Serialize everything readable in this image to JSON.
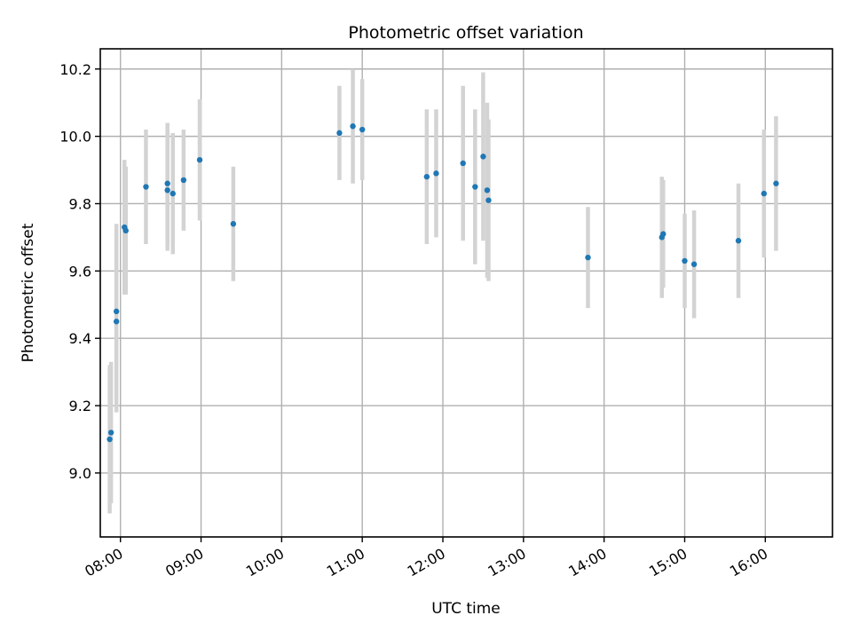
{
  "chart_data": {
    "type": "scatter",
    "title": "Photometric offset variation",
    "xlabel": "UTC time",
    "ylabel": "Photometric offset",
    "x_ticks": [
      "08:00",
      "09:00",
      "10:00",
      "11:00",
      "12:00",
      "13:00",
      "14:00",
      "15:00",
      "16:00"
    ],
    "y_ticks": [
      "9.0",
      "9.2",
      "9.4",
      "9.6",
      "9.8",
      "10.0",
      "10.2"
    ],
    "xlim": [
      "07:45",
      "16:50"
    ],
    "ylim": [
      8.81,
      10.26
    ],
    "grid": true,
    "marker_color": "#1f77b4",
    "errorbar_color": "#d3d3d3",
    "points": [
      {
        "x": "07:52",
        "y": 9.1,
        "err": 0.22
      },
      {
        "x": "07:53",
        "y": 9.12,
        "err": 0.21
      },
      {
        "x": "07:57",
        "y": 9.48,
        "err": 0.26
      },
      {
        "x": "07:57",
        "y": 9.45,
        "err": 0.27
      },
      {
        "x": "08:03",
        "y": 9.73,
        "err": 0.2
      },
      {
        "x": "08:04",
        "y": 9.72,
        "err": 0.19
      },
      {
        "x": "08:19",
        "y": 9.85,
        "err": 0.17
      },
      {
        "x": "08:35",
        "y": 9.86,
        "err": 0.18
      },
      {
        "x": "08:35",
        "y": 9.84,
        "err": 0.18
      },
      {
        "x": "08:39",
        "y": 9.83,
        "err": 0.18
      },
      {
        "x": "08:47",
        "y": 9.87,
        "err": 0.15
      },
      {
        "x": "08:59",
        "y": 9.93,
        "err": 0.18
      },
      {
        "x": "09:24",
        "y": 9.74,
        "err": 0.17
      },
      {
        "x": "10:43",
        "y": 10.01,
        "err": 0.14
      },
      {
        "x": "10:53",
        "y": 10.03,
        "err": 0.17
      },
      {
        "x": "11:00",
        "y": 10.02,
        "err": 0.15
      },
      {
        "x": "11:48",
        "y": 9.88,
        "err": 0.2
      },
      {
        "x": "11:55",
        "y": 9.89,
        "err": 0.19
      },
      {
        "x": "12:15",
        "y": 9.92,
        "err": 0.23
      },
      {
        "x": "12:24",
        "y": 9.85,
        "err": 0.23
      },
      {
        "x": "12:30",
        "y": 9.94,
        "err": 0.25
      },
      {
        "x": "12:33",
        "y": 9.84,
        "err": 0.26
      },
      {
        "x": "12:34",
        "y": 9.81,
        "err": 0.24
      },
      {
        "x": "13:48",
        "y": 9.64,
        "err": 0.15
      },
      {
        "x": "14:43",
        "y": 9.7,
        "err": 0.18
      },
      {
        "x": "14:44",
        "y": 9.71,
        "err": 0.16
      },
      {
        "x": "15:00",
        "y": 9.63,
        "err": 0.14
      },
      {
        "x": "15:07",
        "y": 9.62,
        "err": 0.16
      },
      {
        "x": "15:40",
        "y": 9.69,
        "err": 0.17
      },
      {
        "x": "15:59",
        "y": 9.83,
        "err": 0.19
      },
      {
        "x": "16:08",
        "y": 9.86,
        "err": 0.2
      }
    ]
  }
}
